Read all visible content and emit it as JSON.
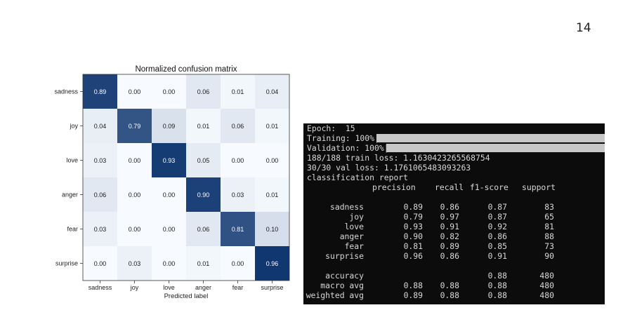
{
  "page": {
    "number": "14"
  },
  "chart_data": {
    "type": "heatmap",
    "title": "Normalized confusion matrix",
    "xlabel": "Predicted label",
    "ylabel": "",
    "rows": [
      "sadness",
      "joy",
      "love",
      "anger",
      "fear",
      "surprise"
    ],
    "cols": [
      "sadness",
      "joy",
      "love",
      "anger",
      "fear",
      "surprise"
    ],
    "values": [
      [
        0.89,
        0.0,
        0.0,
        0.06,
        0.01,
        0.04
      ],
      [
        0.04,
        0.79,
        0.09,
        0.01,
        0.06,
        0.01
      ],
      [
        0.03,
        0.0,
        0.93,
        0.05,
        0.0,
        0.0
      ],
      [
        0.06,
        0.0,
        0.0,
        0.9,
        0.03,
        0.01
      ],
      [
        0.03,
        0.0,
        0.0,
        0.06,
        0.81,
        0.1
      ],
      [
        0.0,
        0.03,
        0.0,
        0.01,
        0.0,
        0.96
      ]
    ],
    "colormap": [
      "#f7fbff",
      "#08306b"
    ]
  },
  "terminal": {
    "epoch": "Epoch:  15",
    "training": "Training: 100%|",
    "validation": "Validation: 100%|",
    "training_progress": 1.0,
    "validation_progress": 1.0,
    "train_loss": "188/188 train loss: 1.1630423265568754",
    "val_loss": "30/30 val loss: 1.1761065483093263",
    "report_title": "classification report",
    "headers": [
      "precision",
      "recall",
      "f1-score",
      "support"
    ],
    "rows": [
      {
        "label": "sadness",
        "precision": "0.89",
        "recall": "0.86",
        "f1": "0.87",
        "support": "83"
      },
      {
        "label": "joy",
        "precision": "0.79",
        "recall": "0.97",
        "f1": "0.87",
        "support": "65"
      },
      {
        "label": "love",
        "precision": "0.93",
        "recall": "0.91",
        "f1": "0.92",
        "support": "81"
      },
      {
        "label": "anger",
        "precision": "0.90",
        "recall": "0.82",
        "f1": "0.86",
        "support": "88"
      },
      {
        "label": "fear",
        "precision": "0.81",
        "recall": "0.89",
        "f1": "0.85",
        "support": "73"
      },
      {
        "label": "surprise",
        "precision": "0.96",
        "recall": "0.86",
        "f1": "0.91",
        "support": "90"
      }
    ],
    "summary": [
      {
        "label": "accuracy",
        "precision": "",
        "recall": "",
        "f1": "0.88",
        "support": "480"
      },
      {
        "label": "macro avg",
        "precision": "0.88",
        "recall": "0.88",
        "f1": "0.88",
        "support": "480"
      },
      {
        "label": "weighted avg",
        "precision": "0.89",
        "recall": "0.88",
        "f1": "0.88",
        "support": "480"
      }
    ]
  }
}
